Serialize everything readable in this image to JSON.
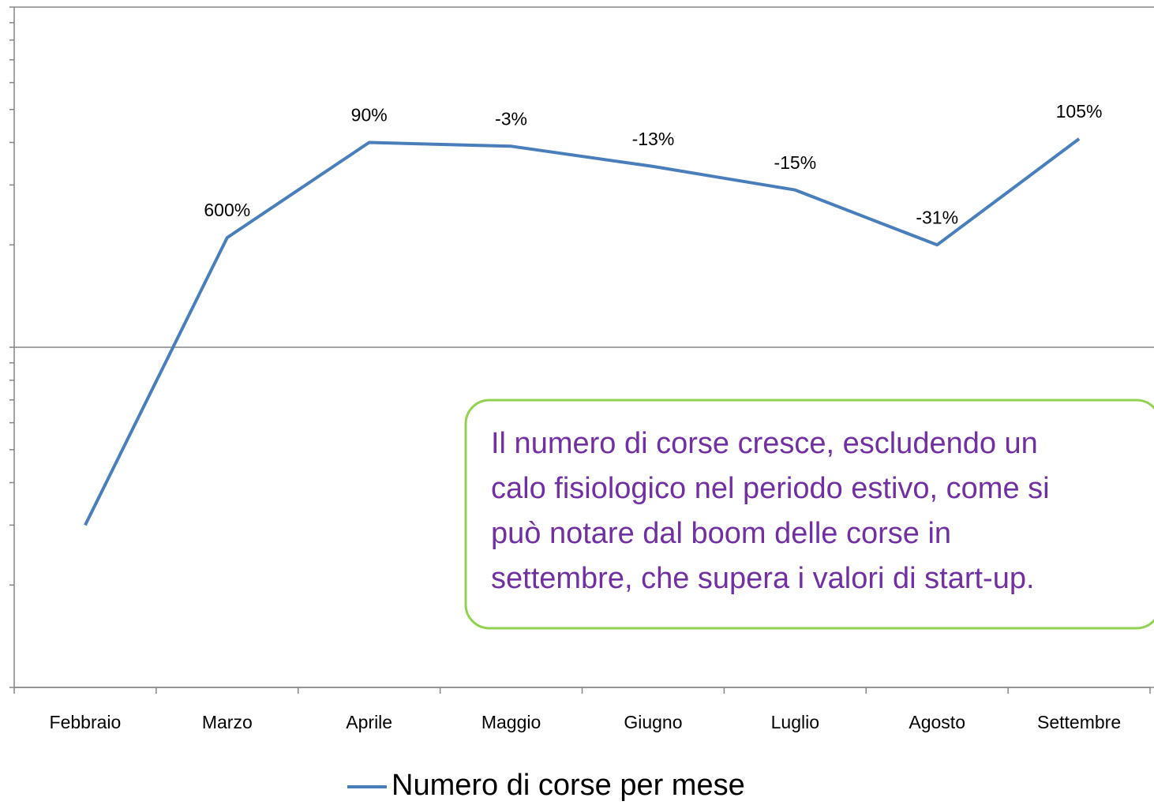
{
  "chart_data": {
    "type": "line",
    "categories": [
      "Febbraio",
      "Marzo",
      "Aprile",
      "Maggio",
      "Giugno",
      "Luglio",
      "Agosto",
      "Settembre"
    ],
    "series": [
      {
        "name": "Numero di corse per mese",
        "color": "#4a7ebb",
        "values": [
          3,
          21,
          40,
          39,
          34,
          29,
          20,
          41
        ]
      }
    ],
    "point_labels": [
      null,
      "600%",
      "90%",
      "-3%",
      "-13%",
      "-15%",
      "-31%",
      "105%"
    ],
    "ylim": [
      1,
      100
    ],
    "log_scale": true,
    "yticks": [
      1,
      2,
      3,
      4,
      5,
      6,
      7,
      8,
      9,
      10,
      20,
      30,
      40,
      50,
      60,
      70,
      80,
      90,
      100
    ],
    "grid": true,
    "legend": "bottom",
    "annotation": {
      "lines": [
        "Il numero di corse cresce, escludendo un",
        "calo fisiologico nel periodo estivo, come si",
        "può notare dal boom delle corse in",
        "settembre, che supera i valori di start-up."
      ],
      "color": "#7030a0",
      "border_color": "#92d050"
    }
  }
}
